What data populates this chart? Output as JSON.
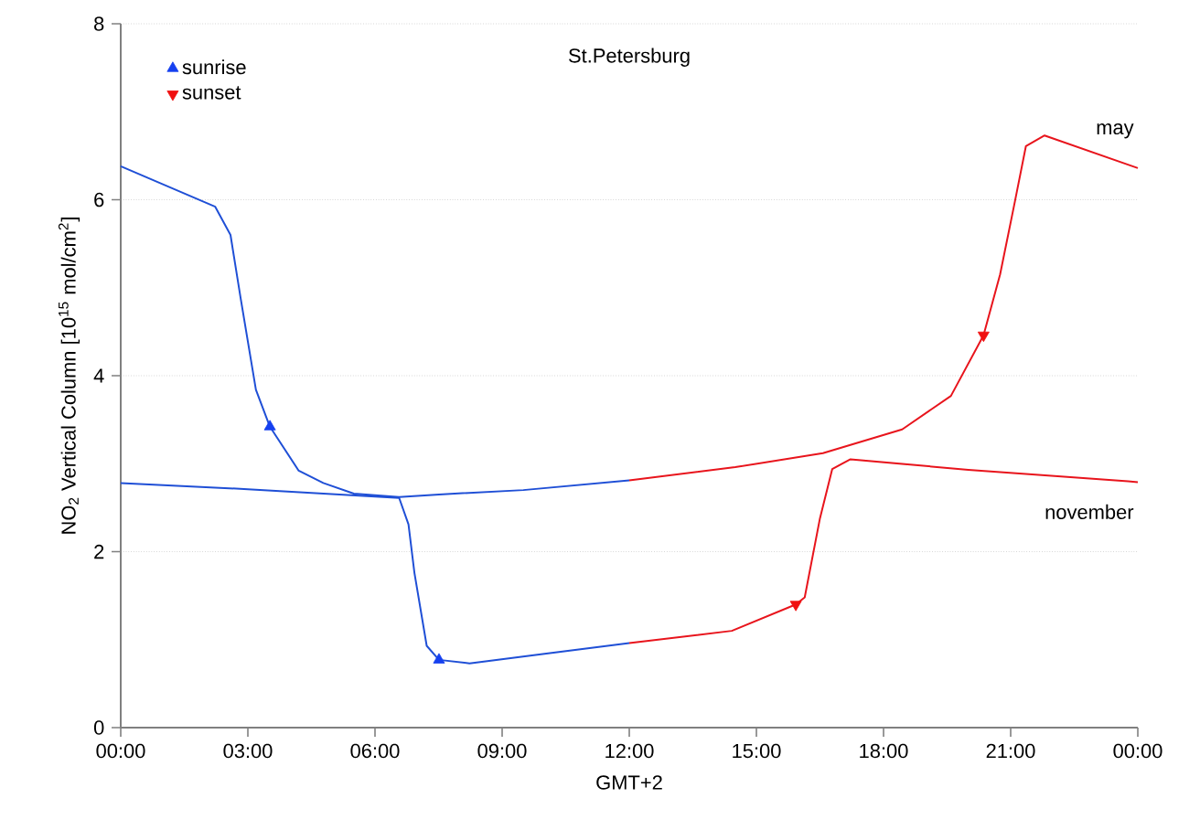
{
  "chart_data": {
    "type": "line",
    "title": "St.Petersburg",
    "xlabel": "GMT+2",
    "ylabel": "NO$_{2}$ Vertical Column [10$^{15}$ mol/cm$^{2}$]",
    "xlim": [
      0,
      24
    ],
    "ylim": [
      0,
      8
    ],
    "xticks": [
      {
        "value": 0,
        "label": "00:00"
      },
      {
        "value": 3,
        "label": "03:00"
      },
      {
        "value": 6,
        "label": "06:00"
      },
      {
        "value": 9,
        "label": "09:00"
      },
      {
        "value": 12,
        "label": "12:00"
      },
      {
        "value": 15,
        "label": "15:00"
      },
      {
        "value": 18,
        "label": "18:00"
      },
      {
        "value": 21,
        "label": "21:00"
      },
      {
        "value": 24,
        "label": "00:00"
      }
    ],
    "yticks": [
      0,
      2,
      4,
      6,
      8
    ],
    "grid": "y",
    "legend": "top left",
    "series": [
      {
        "marker": "none",
        "color": "#1f4fd6",
        "x": [
          0,
          2.23,
          2.59,
          2.83,
          3.19,
          3.52,
          4.2,
          4.78,
          5.5,
          6.57,
          7.51,
          9.5,
          12
        ],
        "values": [
          6.38,
          5.92,
          5.6,
          4.88,
          3.84,
          3.42,
          2.92,
          2.78,
          2.66,
          2.62,
          2.65,
          2.7,
          2.81
        ]
      },
      {
        "marker": "none",
        "color": "#e8141c",
        "x": [
          12,
          14.5,
          16.57,
          18.44,
          19.59,
          20.36,
          20.75,
          21.1,
          21.36,
          21.8,
          24
        ],
        "values": [
          2.81,
          2.96,
          3.12,
          3.39,
          3.77,
          4.46,
          5.15,
          5.98,
          6.61,
          6.73,
          6.36
        ]
      },
      {
        "marker": "none",
        "color": "#1f4fd6",
        "x": [
          0,
          3,
          6.57,
          6.79,
          6.93,
          7.22,
          7.51,
          8.23,
          10,
          12
        ],
        "values": [
          2.78,
          2.71,
          2.61,
          2.31,
          1.76,
          0.93,
          0.77,
          0.73,
          0.84,
          0.96
        ]
      },
      {
        "marker": "none",
        "color": "#e8141c",
        "x": [
          12,
          14.42,
          15.93,
          16.14,
          16.5,
          16.79,
          17.22,
          20,
          23.77,
          24
        ],
        "values": [
          0.96,
          1.1,
          1.4,
          1.48,
          2.38,
          2.94,
          3.05,
          2.93,
          2.8,
          2.79
        ]
      },
      {
        "type": "scatter",
        "name": "sunrise",
        "marker": "triangle",
        "color": "#1540f0",
        "x": [
          3.52,
          7.51
        ],
        "values": [
          3.42,
          0.77
        ]
      },
      {
        "type": "scatter",
        "name": "sunset",
        "marker": "triangle-down",
        "color": "#f01010",
        "x": [
          15.93,
          20.36
        ],
        "values": [
          1.4,
          4.46
        ]
      }
    ],
    "annotations": [
      {
        "text": "may",
        "x": 24,
        "y": 6.36
      },
      {
        "text": "november",
        "x": 24,
        "y": 2.79
      }
    ]
  }
}
